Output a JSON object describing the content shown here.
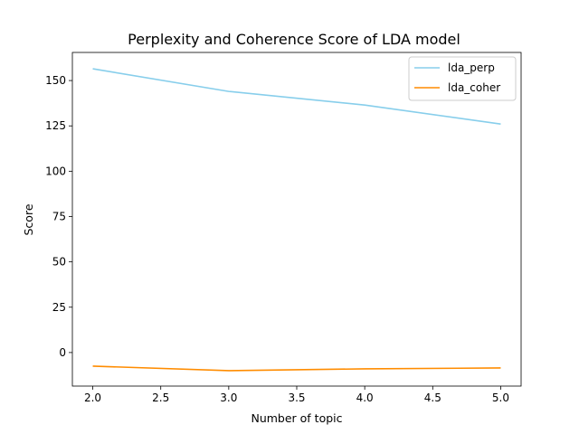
{
  "chart_data": {
    "type": "line",
    "title": "Perplexity and Coherence Score of LDA model",
    "xlabel": "Number of topic",
    "ylabel": "Score",
    "x": [
      2,
      3,
      4,
      5
    ],
    "xlim": [
      1.85,
      5.15
    ],
    "ylim": [
      -18.5,
      165.5
    ],
    "xticks": [
      2.0,
      2.5,
      3.0,
      3.5,
      4.0,
      4.5,
      5.0
    ],
    "xtick_labels": [
      "2.0",
      "2.5",
      "3.0",
      "3.5",
      "4.0",
      "4.5",
      "5.0"
    ],
    "yticks": [
      0,
      25,
      50,
      75,
      100,
      125,
      150
    ],
    "ytick_labels": [
      "0",
      "25",
      "50",
      "75",
      "100",
      "125",
      "150"
    ],
    "grid": false,
    "legend_position": "top-right",
    "series": [
      {
        "name": "lda_perp",
        "color": "#87ceeb",
        "values": [
          156.5,
          144.0,
          136.5,
          126.0
        ]
      },
      {
        "name": "lda_coher",
        "color": "#ff8c00",
        "values": [
          -7.5,
          -10.0,
          -9.0,
          -8.5
        ]
      }
    ]
  }
}
